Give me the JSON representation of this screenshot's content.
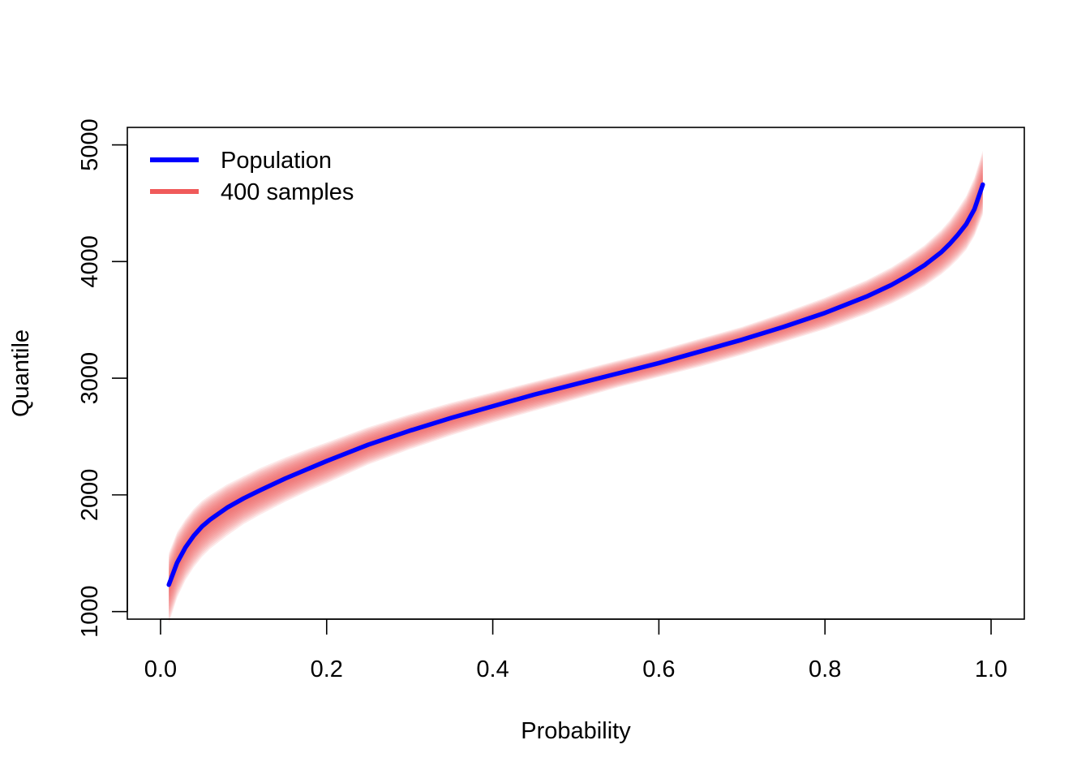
{
  "chart_data": {
    "type": "line",
    "title": "",
    "xlabel": "Probability",
    "ylabel": "Quantile",
    "xlim": [
      -0.04,
      1.04
    ],
    "ylim": [
      935,
      5150
    ],
    "x_ticks": [
      0.0,
      0.2,
      0.4,
      0.6,
      0.8,
      1.0
    ],
    "x_tick_labels": [
      "0.0",
      "0.2",
      "0.4",
      "0.6",
      "0.8",
      "1.0"
    ],
    "y_ticks": [
      1000,
      2000,
      3000,
      4000,
      5000
    ],
    "y_tick_labels": [
      "1000",
      "2000",
      "3000",
      "4000",
      "5000"
    ],
    "grid": false,
    "legend": {
      "position": "top-left",
      "entries": [
        {
          "label": "Population",
          "color": "#0000ff"
        },
        {
          "label": "400 samples",
          "color": "#f05a5a"
        }
      ]
    },
    "series": [
      {
        "name": "Population",
        "color": "#0000ff",
        "x": [
          0.01,
          0.02,
          0.03,
          0.04,
          0.05,
          0.06,
          0.08,
          0.1,
          0.12,
          0.15,
          0.18,
          0.2,
          0.25,
          0.3,
          0.35,
          0.4,
          0.45,
          0.5,
          0.55,
          0.6,
          0.65,
          0.7,
          0.75,
          0.8,
          0.85,
          0.88,
          0.9,
          0.92,
          0.94,
          0.95,
          0.96,
          0.97,
          0.98,
          0.99
        ],
        "y": [
          1230,
          1420,
          1550,
          1650,
          1730,
          1790,
          1890,
          1970,
          2040,
          2140,
          2230,
          2290,
          2430,
          2550,
          2660,
          2760,
          2860,
          2950,
          3040,
          3130,
          3230,
          3330,
          3440,
          3560,
          3700,
          3800,
          3880,
          3970,
          4080,
          4150,
          4230,
          4320,
          4450,
          4660
        ]
      },
      {
        "name": "400 samples",
        "color": "#f05a5a",
        "x": [
          0.01,
          0.02,
          0.03,
          0.04,
          0.05,
          0.06,
          0.08,
          0.1,
          0.12,
          0.15,
          0.18,
          0.2,
          0.25,
          0.3,
          0.35,
          0.4,
          0.45,
          0.5,
          0.55,
          0.6,
          0.65,
          0.7,
          0.75,
          0.8,
          0.85,
          0.88,
          0.9,
          0.92,
          0.94,
          0.95,
          0.96,
          0.97,
          0.98,
          0.99
        ],
        "y_upper": [
          1500,
          1680,
          1790,
          1880,
          1950,
          2000,
          2090,
          2160,
          2230,
          2320,
          2400,
          2450,
          2580,
          2690,
          2790,
          2880,
          2970,
          3060,
          3150,
          3240,
          3340,
          3440,
          3560,
          3690,
          3840,
          3950,
          4040,
          4140,
          4270,
          4350,
          4450,
          4560,
          4720,
          4950
        ],
        "y_lower": [
          900,
          1120,
          1270,
          1380,
          1470,
          1540,
          1650,
          1750,
          1830,
          1940,
          2040,
          2100,
          2260,
          2390,
          2510,
          2620,
          2720,
          2820,
          2920,
          3010,
          3100,
          3200,
          3310,
          3420,
          3550,
          3640,
          3710,
          3790,
          3890,
          3950,
          4020,
          4100,
          4220,
          4400
        ]
      }
    ]
  }
}
